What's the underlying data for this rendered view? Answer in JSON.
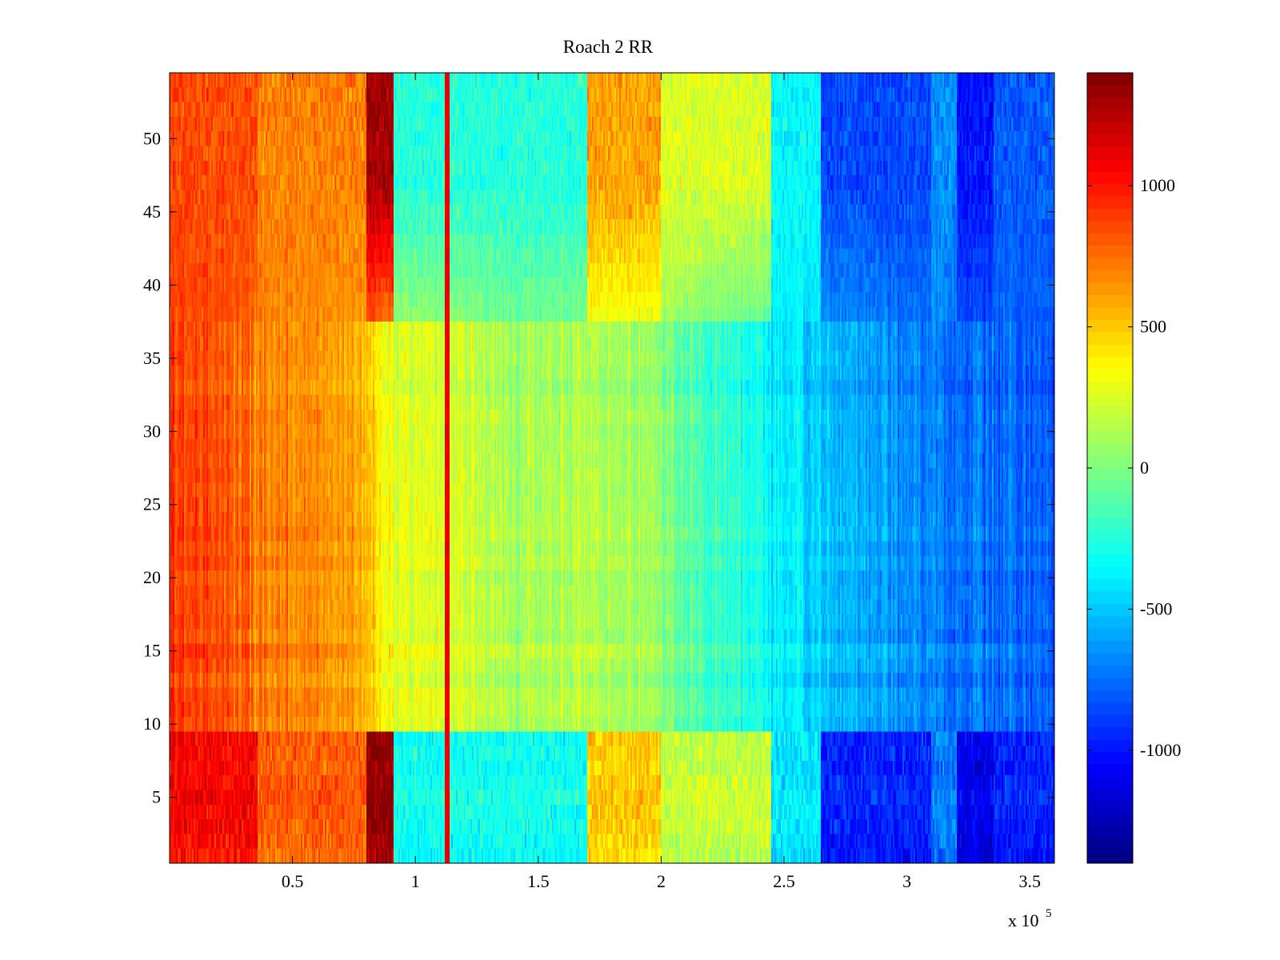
{
  "chart_data": {
    "type": "heatmap",
    "title": "Roach 2 RR",
    "xlabel": "",
    "ylabel": "",
    "x_exponent_label": {
      "base": "x 10",
      "exponent": "5"
    },
    "xlim": [
      0,
      360000
    ],
    "ylim": [
      0.5,
      54.5
    ],
    "rows": 54,
    "x_ticks": [
      {
        "value": 50000,
        "label": "0.5"
      },
      {
        "value": 100000,
        "label": "1"
      },
      {
        "value": 150000,
        "label": "1.5"
      },
      {
        "value": 200000,
        "label": "2"
      },
      {
        "value": 250000,
        "label": "2.5"
      },
      {
        "value": 300000,
        "label": "3"
      },
      {
        "value": 350000,
        "label": "3.5"
      }
    ],
    "y_ticks": [
      {
        "value": 5,
        "label": "5"
      },
      {
        "value": 10,
        "label": "10"
      },
      {
        "value": 15,
        "label": "15"
      },
      {
        "value": 20,
        "label": "20"
      },
      {
        "value": 25,
        "label": "25"
      },
      {
        "value": 30,
        "label": "30"
      },
      {
        "value": 35,
        "label": "35"
      },
      {
        "value": 40,
        "label": "40"
      },
      {
        "value": 45,
        "label": "45"
      },
      {
        "value": 50,
        "label": "50"
      }
    ],
    "colorbar": {
      "colormap": "jet",
      "clim": [
        -1400,
        1400
      ],
      "ticks": [
        {
          "value": 1000,
          "label": "1000"
        },
        {
          "value": 500,
          "label": "500"
        },
        {
          "value": 0,
          "label": "0"
        },
        {
          "value": -500,
          "label": "-500"
        },
        {
          "value": -1000,
          "label": "-1000"
        }
      ]
    },
    "column_profile": {
      "x": [
        0,
        20000,
        40000,
        60000,
        78000,
        92000,
        110000,
        140000,
        170000,
        190000,
        210000,
        240000,
        270000,
        300000,
        330000,
        360000
      ],
      "mean_value": [
        900,
        820,
        700,
        650,
        600,
        250,
        250,
        100,
        150,
        130,
        -100,
        -300,
        -550,
        -650,
        -750,
        -800
      ]
    },
    "edge_rows": {
      "bottom_rows": [
        1,
        9
      ],
      "top_rows": [
        38,
        54
      ],
      "bands": [
        {
          "x": [
            0,
            36000
          ],
          "bottom": 1050,
          "top": 850
        },
        {
          "x": [
            36000,
            80000
          ],
          "bottom": 800,
          "top": 700
        },
        {
          "x": [
            80000,
            91000
          ],
          "bottom": 1350,
          "top": 1300
        },
        {
          "x": [
            91000,
            170000
          ],
          "bottom": -300,
          "top": -250
        },
        {
          "x": [
            170000,
            200000
          ],
          "bottom": 500,
          "top": 600
        },
        {
          "x": [
            200000,
            245000
          ],
          "bottom": 200,
          "top": 250
        },
        {
          "x": [
            245000,
            265000
          ],
          "bottom": -400,
          "top": -350
        },
        {
          "x": [
            265000,
            310000
          ],
          "bottom": -950,
          "top": -850
        },
        {
          "x": [
            310000,
            320000
          ],
          "bottom": -700,
          "top": -650
        },
        {
          "x": [
            320000,
            335000
          ],
          "bottom": -1100,
          "top": -1000
        },
        {
          "x": [
            335000,
            360000
          ],
          "bottom": -950,
          "top": -800
        }
      ],
      "stripes": [
        {
          "x": 113000,
          "value": 1100
        }
      ]
    }
  }
}
